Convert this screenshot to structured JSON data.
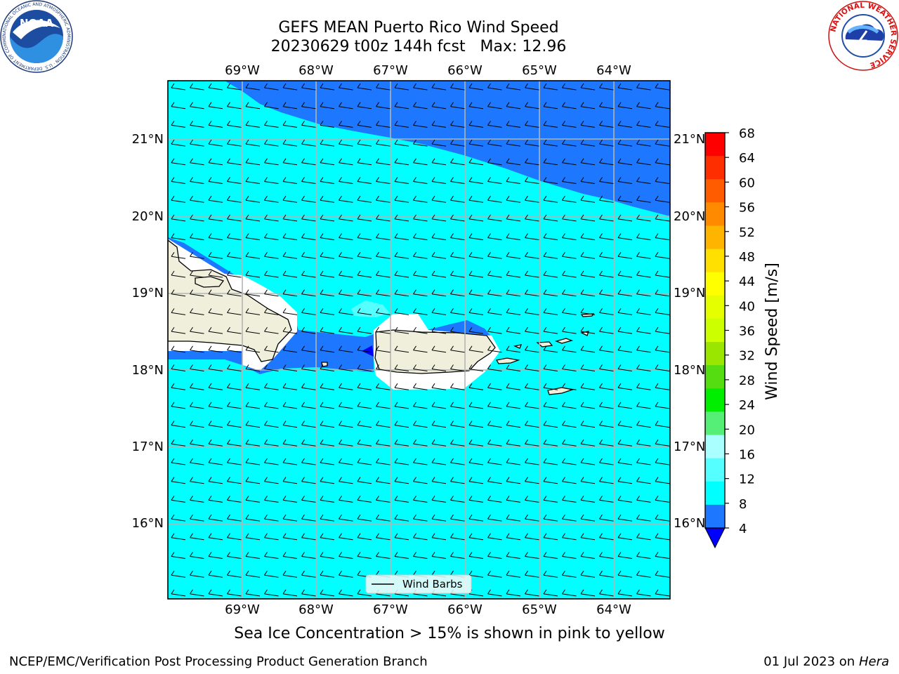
{
  "title_line1": "GEFS MEAN Puerto Rico Wind Speed",
  "title_line2": "20230629 t00z 144h fcst   Max: 12.96",
  "subtitle": "Sea Ice Concentration > 15% is shown in pink to yellow",
  "footer_left": "NCEP/EMC/Verification Post Processing Product Generation Branch",
  "footer_right_date": "01 Jul 2023 on ",
  "footer_right_host": "Hera",
  "logos": {
    "noaa_text": "NOAA",
    "noaa_ring_text": "NATIONAL OCEANIC AND ATMOSPHERIC ADMINISTRATION · U.S. DEPARTMENT OF COMMERCE ·",
    "nws_ring_text": "NATIONAL WEATHER SERVICE"
  },
  "map": {
    "lon_labels": [
      "69°W",
      "68°W",
      "67°W",
      "66°W",
      "65°W",
      "64°W"
    ],
    "lat_labels": [
      "21°N",
      "20°N",
      "19°N",
      "18°N",
      "17°N",
      "16°N"
    ],
    "legend_label": "Wind Barbs",
    "colors": {
      "ocean_8_12": "#00ffff",
      "ocean_4_8": "#1e78ff",
      "land": "#efefdc",
      "grid": "#b4b4b4"
    }
  },
  "colorbar": {
    "label": "Wind Speed [m/s]",
    "ticks": [
      "68",
      "64",
      "60",
      "56",
      "52",
      "48",
      "44",
      "40",
      "36",
      "32",
      "28",
      "24",
      "20",
      "16",
      "12",
      "8",
      "4"
    ],
    "colors": [
      "#ff0000",
      "#ff2e00",
      "#ff5c00",
      "#ff8a00",
      "#ffb400",
      "#ffe000",
      "#ffff00",
      "#e6ff00",
      "#ccff00",
      "#9ae600",
      "#55dd11",
      "#00ee00",
      "#55ee77",
      "#aaffff",
      "#55ffff",
      "#00ffff",
      "#1e78ff"
    ],
    "extend_color": "#0000ff"
  }
}
